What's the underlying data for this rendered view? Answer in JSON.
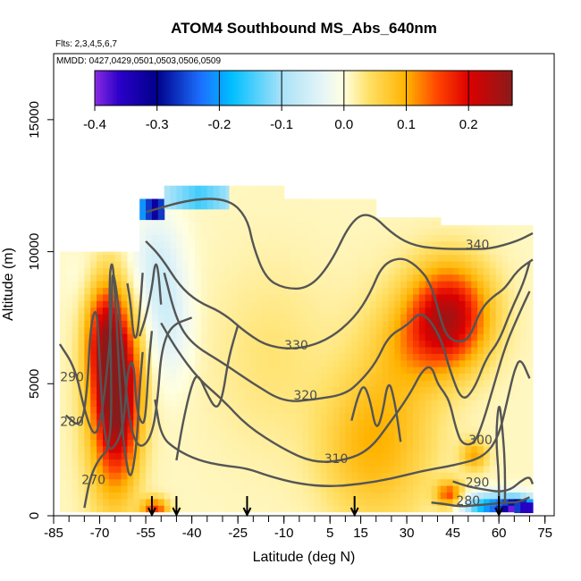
{
  "chart_data": {
    "type": "heatmap",
    "title": "ATOM4 Southbound MS_Abs_640nm",
    "flights_note": "Flts: 2,3,4,5,6,7",
    "dates_note": "MMDD: 0427,0429,0501,0503,0506,0509",
    "xlabel": "Latitude (deg N)",
    "ylabel": "Altitude (m)",
    "xlim": [
      -85,
      78
    ],
    "ylim": [
      0,
      17500
    ],
    "x_ticks": [
      -85,
      -70,
      -55,
      -40,
      -25,
      -10,
      5,
      15,
      30,
      45,
      60,
      75
    ],
    "x_minor_step": 5,
    "y_ticks": [
      0,
      5000,
      10000,
      15000
    ],
    "colorbar": {
      "range": [
        -0.4,
        0.27
      ],
      "ticks": [
        -0.4,
        -0.3,
        -0.2,
        -0.1,
        0.0,
        0.1,
        0.2
      ],
      "tick_labels": [
        "-0.4",
        "-0.3",
        "-0.2",
        "-0.1",
        "0.0",
        "0.1",
        "0.2"
      ],
      "stops": [
        {
          "v": -0.4,
          "c": "#8a2be2"
        },
        {
          "v": -0.36,
          "c": "#2a00c8"
        },
        {
          "v": -0.3,
          "c": "#00008b"
        },
        {
          "v": -0.23,
          "c": "#1c6fff"
        },
        {
          "v": -0.18,
          "c": "#00bfff"
        },
        {
          "v": -0.1,
          "c": "#a8e2f8"
        },
        {
          "v": -0.03,
          "c": "#eaf6f6"
        },
        {
          "v": 0.0,
          "c": "#ffffe0"
        },
        {
          "v": 0.04,
          "c": "#ffe066"
        },
        {
          "v": 0.1,
          "c": "#ffb300"
        },
        {
          "v": 0.15,
          "c": "#ff4500"
        },
        {
          "v": 0.2,
          "c": "#dd0000"
        },
        {
          "v": 0.27,
          "c": "#8b1a1a"
        }
      ]
    },
    "field_blobs": [
      {
        "x": -64,
        "y": 4700,
        "sx": 5,
        "sy": 2200,
        "v": 0.22
      },
      {
        "x": -69,
        "y": 7000,
        "sx": 4,
        "sy": 1500,
        "v": 0.12
      },
      {
        "x": -67,
        "y": 4200,
        "sx": 6,
        "sy": 2800,
        "v": 0.08
      },
      {
        "x": -52,
        "y": 250,
        "sx": 3,
        "sy": 300,
        "v": 0.15
      },
      {
        "x": 44,
        "y": 7700,
        "sx": 9,
        "sy": 1300,
        "v": 0.2
      },
      {
        "x": 37,
        "y": 6600,
        "sx": 10,
        "sy": 1100,
        "v": 0.06
      },
      {
        "x": 52,
        "y": 2300,
        "sx": 3,
        "sy": 400,
        "v": 0.09
      },
      {
        "x": 44,
        "y": 800,
        "sx": 3,
        "sy": 350,
        "v": 0.14
      },
      {
        "x": 58,
        "y": 350,
        "sx": 7,
        "sy": 350,
        "v": -0.22
      },
      {
        "x": 67,
        "y": 250,
        "sx": 4,
        "sy": 300,
        "v": -0.33
      },
      {
        "x": -52,
        "y": 9500,
        "sx": 6,
        "sy": 1500,
        "v": -0.06
      },
      {
        "x": -47,
        "y": 7200,
        "sx": 5,
        "sy": 1500,
        "v": -0.05
      },
      {
        "x": 14,
        "y": 2500,
        "sx": 10,
        "sy": 1800,
        "v": 0.05
      },
      {
        "x": 26,
        "y": 3800,
        "sx": 11,
        "sy": 2800,
        "v": 0.06
      },
      {
        "x": -14,
        "y": 6000,
        "sx": 14,
        "sy": 2500,
        "v": 0.025
      },
      {
        "x": -72,
        "y": 9000,
        "sx": 6,
        "sy": 1000,
        "v": -0.02
      }
    ],
    "field_background": 0.01,
    "coverage": [
      {
        "x0": -83,
        "x1": -57,
        "y0": 150,
        "y1": 10000
      },
      {
        "x0": -57,
        "x1": -49,
        "y0": 150,
        "y1": 11600
      },
      {
        "x0": -49,
        "x1": -10,
        "y0": 150,
        "y1": 12500
      },
      {
        "x0": -10,
        "x1": 20,
        "y0": 150,
        "y1": 12000
      },
      {
        "x0": 20,
        "x1": 41,
        "y0": 150,
        "y1": 11300
      },
      {
        "x0": 41,
        "x1": 71,
        "y0": 150,
        "y1": 11000
      }
    ],
    "extra_patches": [
      {
        "x0": -57,
        "x1": -49,
        "y0": 11200,
        "y1": 12000,
        "v": -0.32
      },
      {
        "x0": -49,
        "x1": -28,
        "y0": 11600,
        "y1": 12500,
        "v": -0.15
      },
      {
        "x0": 65,
        "x1": 71,
        "y0": 100,
        "y1": 500,
        "v": -0.4
      }
    ],
    "contour_lines": [
      {
        "label": "340",
        "label_x": 53,
        "label_y": 10100,
        "points": [
          [
            -55,
            11500
          ],
          [
            -40,
            12000
          ],
          [
            -28,
            12000
          ],
          [
            -22,
            11300
          ],
          [
            -20,
            10200
          ],
          [
            -16,
            9000
          ],
          [
            -10,
            8600
          ],
          [
            -2,
            8600
          ],
          [
            5,
            9500
          ],
          [
            12,
            11200
          ],
          [
            18,
            11500
          ],
          [
            26,
            10600
          ],
          [
            33,
            10200
          ],
          [
            42,
            10100
          ],
          [
            50,
            10100
          ],
          [
            57,
            10100
          ],
          [
            66,
            10400
          ],
          [
            71,
            10700
          ]
        ]
      },
      {
        "label": "330",
        "label_x": -6,
        "label_y": 6300,
        "points": [
          [
            -55,
            10400
          ],
          [
            -50,
            9800
          ],
          [
            -44,
            8700
          ],
          [
            -38,
            8100
          ],
          [
            -30,
            7700
          ],
          [
            -22,
            6900
          ],
          [
            -15,
            6400
          ],
          [
            -5,
            6300
          ],
          [
            5,
            6700
          ],
          [
            13,
            7500
          ],
          [
            18,
            8400
          ],
          [
            22,
            9500
          ],
          [
            28,
            9800
          ],
          [
            33,
            9500
          ],
          [
            38,
            8800
          ],
          [
            42,
            7000
          ],
          [
            45,
            6600
          ],
          [
            50,
            6600
          ],
          [
            54,
            7800
          ],
          [
            58,
            8300
          ],
          [
            62,
            8600
          ],
          [
            66,
            9300
          ],
          [
            71,
            9700
          ]
        ]
      },
      {
        "label": "320",
        "label_x": -3,
        "label_y": 4400,
        "points": [
          [
            -49,
            9200
          ],
          [
            -45,
            7400
          ],
          [
            -40,
            6500
          ],
          [
            -30,
            5800
          ],
          [
            -20,
            5000
          ],
          [
            -10,
            4300
          ],
          [
            0,
            4400
          ],
          [
            10,
            4600
          ],
          [
            15,
            5100
          ],
          [
            20,
            5800
          ],
          [
            24,
            6800
          ],
          [
            30,
            7200
          ],
          [
            35,
            7800
          ],
          [
            41,
            6800
          ],
          [
            44,
            5500
          ],
          [
            48,
            4300
          ],
          [
            52,
            4800
          ],
          [
            56,
            6000
          ],
          [
            60,
            6600
          ],
          [
            64,
            7800
          ],
          [
            68,
            8800
          ],
          [
            70,
            9600
          ]
        ]
      },
      {
        "label": "310",
        "label_x": 7,
        "label_y": 2000,
        "points": [
          [
            -50,
            7300
          ],
          [
            -45,
            6300
          ],
          [
            -38,
            5200
          ],
          [
            -30,
            4400
          ],
          [
            -22,
            3400
          ],
          [
            -10,
            2500
          ],
          [
            0,
            2000
          ],
          [
            10,
            2100
          ],
          [
            18,
            2500
          ],
          [
            25,
            3600
          ],
          [
            31,
            4600
          ],
          [
            35,
            5500
          ],
          [
            38,
            5700
          ],
          [
            40,
            5000
          ],
          [
            42,
            4700
          ],
          [
            44,
            4300
          ],
          [
            46,
            3300
          ],
          [
            48,
            2700
          ],
          [
            52,
            2700
          ],
          [
            55,
            3600
          ],
          [
            58,
            4800
          ],
          [
            62,
            6400
          ],
          [
            66,
            7500
          ],
          [
            70,
            8500
          ]
        ]
      },
      {
        "label": "300",
        "label_x": 54,
        "label_y": 2700,
        "points": [
          [
            -52,
            4400
          ],
          [
            -50,
            3000
          ],
          [
            -45,
            2500
          ],
          [
            -38,
            2100
          ],
          [
            -30,
            1900
          ],
          [
            -22,
            1800
          ],
          [
            -15,
            1500
          ],
          [
            -5,
            1200
          ],
          [
            5,
            1100
          ],
          [
            15,
            1200
          ],
          [
            25,
            1400
          ],
          [
            35,
            1700
          ],
          [
            45,
            1900
          ],
          [
            55,
            2200
          ],
          [
            60,
            3000
          ],
          [
            63,
            4500
          ],
          [
            65,
            5500
          ],
          [
            67,
            6000
          ],
          [
            70,
            5200
          ]
        ]
      },
      {
        "label": "290",
        "label_x": -79,
        "label_y": 5100,
        "points": [
          [
            -83,
            6500
          ],
          [
            -78,
            5600
          ],
          [
            -75,
            4000
          ],
          [
            -72,
            3000
          ],
          [
            -70,
            3400
          ],
          [
            -68,
            5000
          ],
          [
            -66,
            7500
          ],
          [
            -66,
            9500
          ],
          [
            -64,
            8200
          ],
          [
            -62,
            5400
          ],
          [
            -60,
            3300
          ],
          [
            -57,
            2500
          ],
          [
            -53,
            3000
          ],
          [
            -51,
            4500
          ],
          [
            -50,
            6200
          ],
          [
            -47,
            7200
          ],
          [
            -40,
            7500
          ]
        ]
      },
      {
        "label": "280",
        "label_x": -79,
        "label_y": 3400,
        "points": [
          [
            -81,
            3800
          ],
          [
            -76,
            3300
          ],
          [
            -74,
            4800
          ],
          [
            -73,
            7200
          ],
          [
            -71,
            8000
          ],
          [
            -70,
            6000
          ],
          [
            -69,
            3500
          ],
          [
            -67,
            2400
          ],
          [
            -64,
            2800
          ],
          [
            -62,
            3600
          ],
          [
            -61,
            5500
          ],
          [
            -59,
            6000
          ],
          [
            -58,
            4000
          ],
          [
            -56,
            3400
          ],
          [
            -55,
            3800
          ],
          [
            -54,
            5800
          ],
          [
            -53,
            7000
          ]
        ]
      },
      {
        "label": "270",
        "label_x": -72,
        "label_y": 1200,
        "points": [
          [
            -75,
            300
          ],
          [
            -73,
            1500
          ],
          [
            -70,
            2200
          ],
          [
            -67,
            2500
          ],
          [
            -66,
            4200
          ],
          [
            -67,
            8800
          ],
          [
            -66,
            9800
          ],
          [
            -65,
            8500
          ],
          [
            -63,
            4000
          ],
          [
            -62,
            2500
          ],
          [
            -60,
            1200
          ],
          [
            -58,
            2600
          ],
          [
            -57,
            4800
          ],
          [
            -56,
            6200
          ]
        ]
      },
      {
        "label": "290",
        "label_x": 53,
        "label_y": 1100,
        "points": [
          [
            45,
            1300
          ],
          [
            50,
            1100
          ],
          [
            55,
            1000
          ],
          [
            60,
            900
          ],
          [
            64,
            1000
          ],
          [
            67,
            1300
          ],
          [
            70,
            1500
          ],
          [
            71,
            1200
          ]
        ]
      },
      {
        "label": "280",
        "label_x": 50,
        "label_y": 400,
        "points": [
          [
            38,
            500
          ],
          [
            42,
            450
          ],
          [
            47,
            350
          ],
          [
            53,
            400
          ],
          [
            58,
            450
          ],
          [
            62,
            500
          ],
          [
            66,
            500
          ],
          [
            70,
            700
          ]
        ]
      },
      {
        "label": "",
        "label_x": 0,
        "label_y": 0,
        "points": [
          [
            -45,
            2100
          ],
          [
            -43,
            3500
          ],
          [
            -40,
            5000
          ],
          [
            -38,
            5400
          ],
          [
            -35,
            4600
          ],
          [
            -32,
            4000
          ],
          [
            -30,
            4500
          ],
          [
            -28,
            6000
          ],
          [
            -25,
            7200
          ]
        ]
      },
      {
        "label": "",
        "label_x": 0,
        "label_y": 0,
        "points": [
          [
            -57,
            6800
          ],
          [
            -55,
            7500
          ],
          [
            -53,
            8600
          ],
          [
            -52,
            9600
          ],
          [
            -51,
            9400
          ],
          [
            -50,
            8000
          ]
        ]
      },
      {
        "label": "",
        "label_x": 0,
        "label_y": 0,
        "points": [
          [
            -61,
            8800
          ],
          [
            -60,
            8100
          ],
          [
            -59,
            6800
          ],
          [
            -58,
            6700
          ],
          [
            -57,
            7600
          ],
          [
            -56,
            9200
          ]
        ]
      },
      {
        "label": "",
        "label_x": 0,
        "label_y": 0,
        "points": [
          [
            12,
            3600
          ],
          [
            14,
            4500
          ],
          [
            16,
            5000
          ],
          [
            18,
            4400
          ],
          [
            20,
            3200
          ],
          [
            22,
            3800
          ],
          [
            24,
            5200
          ],
          [
            26,
            4400
          ],
          [
            28,
            2800
          ]
        ]
      },
      {
        "label": "",
        "label_x": 0,
        "label_y": 0,
        "points": [
          [
            60,
            200
          ],
          [
            60,
            1500
          ],
          [
            59,
            3000
          ],
          [
            60,
            4400
          ],
          [
            61,
            3500
          ],
          [
            62,
            2000
          ],
          [
            62,
            500
          ]
        ]
      }
    ],
    "flight_arrows_x": [
      -53,
      -45,
      -22,
      13,
      60
    ],
    "colors": {
      "contour": "#555555",
      "axis": "#000000",
      "panel_border": "#000000"
    }
  }
}
